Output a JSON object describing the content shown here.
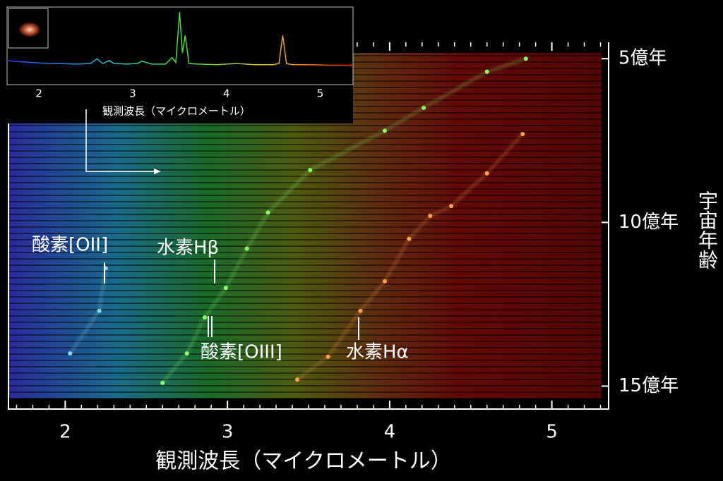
{
  "chart_data": [
    {
      "type": "scatter",
      "x_label": "観測波長（マイクロメートル）",
      "y_label": "宇宙年齢",
      "xlim": [
        1.65,
        5.35
      ],
      "xticks": [
        2,
        3,
        4,
        5
      ],
      "x_minor_step": 0.1,
      "ylim": [
        4.5,
        15.7
      ],
      "y_inverted": true,
      "yticks": [
        {
          "value": 5,
          "label": "5億年"
        },
        {
          "value": 10,
          "label": "10億年"
        },
        {
          "value": 15,
          "label": "15億年"
        }
      ],
      "series": [
        {
          "color": "#8dff6a",
          "x": [
            4.84,
            4.6,
            4.21,
            3.97,
            3.51,
            3.25,
            3.12,
            2.99,
            2.86,
            2.75,
            2.6
          ],
          "values": [
            5.0,
            5.4,
            6.5,
            7.2,
            8.4,
            9.7,
            10.8,
            12.0,
            12.9,
            14.0,
            14.9
          ]
        },
        {
          "color": "#ffa050",
          "x": [
            4.82,
            4.6,
            4.38,
            4.25,
            4.12,
            3.97,
            3.82,
            3.62,
            3.43
          ],
          "values": [
            7.3,
            8.5,
            9.5,
            9.8,
            10.5,
            11.8,
            12.7,
            14.1,
            14.8
          ]
        },
        {
          "color": "#80d8e8",
          "x": [
            2.25,
            2.21,
            2.03
          ],
          "values": [
            11.4,
            12.7,
            14.0
          ]
        }
      ],
      "annotations": [
        "酸素[OII]",
        "水素Hβ",
        "酸素[OIII]",
        "水素Hα"
      ]
    },
    {
      "type": "line",
      "x_label": "観測波長（マイクロメートル）",
      "xlim": [
        1.66,
        5.35
      ],
      "xticks": [
        2,
        3,
        4,
        5
      ],
      "ylim": [
        0,
        1
      ],
      "x": [
        1.66,
        1.8,
        2.0,
        2.2,
        2.4,
        2.55,
        2.62,
        2.68,
        2.75,
        2.8,
        2.95,
        3.05,
        3.1,
        3.2,
        3.35,
        3.42,
        3.46,
        3.5,
        3.53,
        3.56,
        3.6,
        3.7,
        3.9,
        4.1,
        4.3,
        4.5,
        4.56,
        4.6,
        4.64,
        4.7,
        4.9,
        5.1,
        5.35
      ],
      "values": [
        0.17,
        0.15,
        0.13,
        0.12,
        0.11,
        0.12,
        0.2,
        0.12,
        0.17,
        0.12,
        0.11,
        0.12,
        0.16,
        0.11,
        0.11,
        0.22,
        0.14,
        1.0,
        0.3,
        0.6,
        0.12,
        0.11,
        0.1,
        0.12,
        0.1,
        0.1,
        0.12,
        0.6,
        0.12,
        0.1,
        0.1,
        0.09,
        0.09
      ]
    }
  ]
}
